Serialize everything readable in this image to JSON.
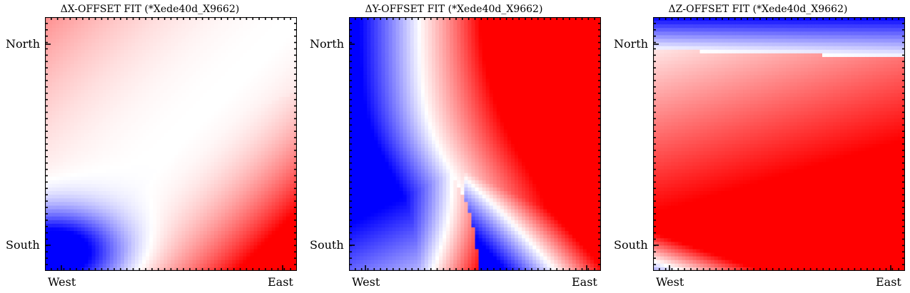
{
  "colors": {
    "negative": "#0000ff",
    "neutral": "#ffffff",
    "positive": "#ff0000",
    "axis": "#000000"
  },
  "chart_data": [
    {
      "type": "heatmap",
      "title": "ΔX-OFFSET FIT (*Xede40d_X9662)",
      "xlabel": "",
      "ylabel": "",
      "x_tick_labels": [
        "West",
        "East"
      ],
      "y_tick_labels": [
        "North",
        "South"
      ],
      "colormap": "bwr",
      "value_range": [
        -1,
        1
      ],
      "grid": false,
      "field_description": "red at north-west and south-east, white diagonal band, blue lobe at south-west"
    },
    {
      "type": "heatmap",
      "title": "ΔY-OFFSET FIT (*Xede40d_X9662)",
      "xlabel": "",
      "ylabel": "",
      "x_tick_labels": [
        "West",
        "East"
      ],
      "y_tick_labels": [
        "North",
        "South"
      ],
      "colormap": "bwr",
      "value_range": [
        -1,
        1
      ],
      "grid": false,
      "field_description": "blue at west and south-east, red at north-east and south-center, curved white bands"
    },
    {
      "type": "heatmap",
      "title": "ΔZ-OFFSET FIT (*Xede40d_X9662)",
      "xlabel": "",
      "ylabel": "",
      "x_tick_labels": [
        "West",
        "East"
      ],
      "y_tick_labels": [
        "North",
        "South"
      ],
      "colormap": "bwr",
      "value_range": [
        -1,
        1
      ],
      "grid": false,
      "field_description": "blue strip along north edge and south-west corner, red body strongest toward east"
    }
  ]
}
